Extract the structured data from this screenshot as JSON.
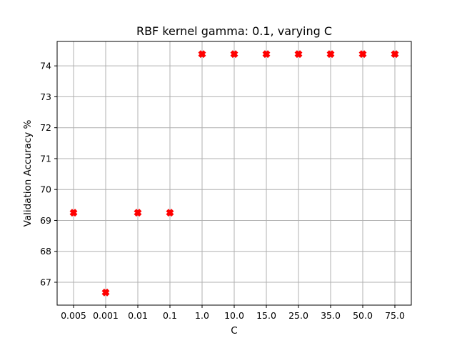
{
  "chart_data": {
    "type": "scatter",
    "title": "RBF kernel gamma: 0.1, varying C",
    "xlabel": "C",
    "ylabel": "Validation Accuracy %",
    "categories": [
      "0.005",
      "0.001",
      "0.01",
      "0.1",
      "1.0",
      "10.0",
      "15.0",
      "25.0",
      "35.0",
      "50.0",
      "75.0"
    ],
    "values": [
      69.25,
      66.67,
      69.25,
      69.25,
      74.38,
      74.38,
      74.38,
      74.38,
      74.38,
      74.38,
      74.38
    ],
    "ylim": [
      66.26,
      74.79
    ],
    "yticks": [
      "67",
      "68",
      "69",
      "70",
      "71",
      "72",
      "73",
      "74"
    ],
    "grid": true,
    "marker": "X",
    "marker_color": "#ff0000"
  }
}
